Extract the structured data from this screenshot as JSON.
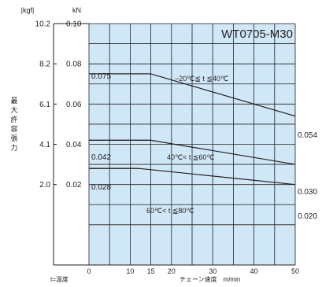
{
  "chart_data": {
    "type": "line",
    "model": "WT0705-M30",
    "y_label": "最大許容張力",
    "y_label_chars": [
      "最",
      "大",
      "許",
      "容",
      "張",
      "力"
    ],
    "y_unit_kgf": "|kgf|",
    "y_unit_kn": "kN",
    "x_label": "チェーン速度　m/min",
    "temp_note": "t=温度",
    "xlim": [
      -15,
      50
    ],
    "ylim": [
      -0.02,
      0.1
    ],
    "x_ticks": [
      0,
      10,
      15,
      20,
      30,
      40,
      50
    ],
    "y_ticks_kn": [
      {
        "v": 0.02,
        "label": "0.02"
      },
      {
        "v": 0.04,
        "label": "0.04"
      },
      {
        "v": 0.06,
        "label": "0.06"
      },
      {
        "v": 0.08,
        "label": "0.08"
      },
      {
        "v": 0.1,
        "label": "0.10"
      }
    ],
    "y_ticks_kgf": [
      {
        "v": 0.02,
        "label": "2.0"
      },
      {
        "v": 0.04,
        "label": "4.1"
      },
      {
        "v": 0.06,
        "label": "6.1"
      },
      {
        "v": 0.08,
        "label": "8.2"
      },
      {
        "v": 0.1,
        "label": "10.2"
      }
    ],
    "grid": true,
    "series": [
      {
        "name": "−20℃≦ t ≦40℃",
        "x": [
          0,
          15,
          50
        ],
        "y": [
          0.075,
          0.075,
          0.054
        ],
        "start_label": "0.075",
        "end_label": "0.054"
      },
      {
        "name": "40℃< t ≦60℃",
        "x": [
          0,
          15,
          50
        ],
        "y": [
          0.042,
          0.042,
          0.03
        ],
        "start_label": "0.042",
        "end_label": "0.030"
      },
      {
        "name": "60℃< t ≦80℃",
        "x": [
          0,
          12,
          50
        ],
        "y": [
          0.028,
          0.028,
          0.02
        ],
        "start_label": "0.028",
        "end_label": "0.020"
      }
    ],
    "colors": {
      "grid_fill": "#cfe7f6",
      "line": "#231f20"
    }
  }
}
